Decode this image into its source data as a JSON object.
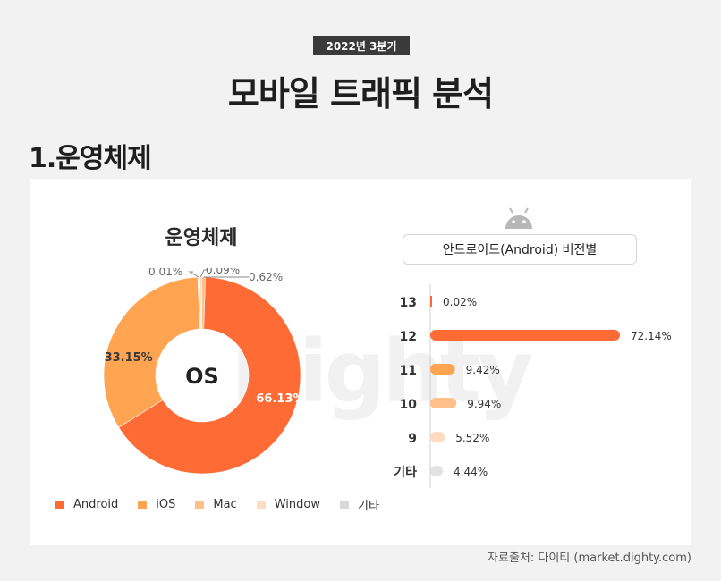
{
  "header": {
    "period": "2022년 3분기",
    "title": "모바일 트래픽 분석",
    "section": "1.운영체제"
  },
  "watermark": "Dighty",
  "source": "자료출처: 다이티 (market.dighty.com)",
  "colors": {
    "android": "#ff6b35",
    "ios": "#ffa552",
    "mac": "#ffc08a",
    "window": "#ffdcbf",
    "other": "#e2e2e2"
  },
  "chart_data": [
    {
      "type": "pie",
      "title": "운영체제",
      "center_label": "OS",
      "slices": [
        {
          "name": "Android",
          "value": 66.13,
          "label": "66.13%",
          "color": "#ff6b35"
        },
        {
          "name": "iOS",
          "value": 33.15,
          "label": "33.15%",
          "color": "#ffa552"
        },
        {
          "name": "Mac",
          "value": 0.62,
          "label": "0.62%",
          "color": "#ffc08a"
        },
        {
          "name": "Window",
          "value": 0.09,
          "label": "0.09%",
          "color": "#ffdcbf"
        },
        {
          "name": "기타",
          "value": 0.01,
          "label": "0.01%",
          "color": "#d9d9d9"
        }
      ],
      "legend": [
        "Android",
        "iOS",
        "Mac",
        "Window",
        "기타"
      ],
      "legend_position": "bottom"
    },
    {
      "type": "bar",
      "orientation": "horizontal",
      "title": "안드로이드(Android) 버전별",
      "categories": [
        "13",
        "12",
        "11",
        "10",
        "9",
        "기타"
      ],
      "values": [
        0.02,
        72.14,
        9.42,
        9.94,
        5.52,
        4.44
      ],
      "labels": [
        "0.02%",
        "72.14%",
        "9.42%",
        "9.94%",
        "5.52%",
        "4.44%"
      ],
      "colors": [
        "#ff6b35",
        "#ff6b35",
        "#ffa552",
        "#ffc08a",
        "#ffdcbf",
        "#e2e2e2"
      ]
    }
  ]
}
